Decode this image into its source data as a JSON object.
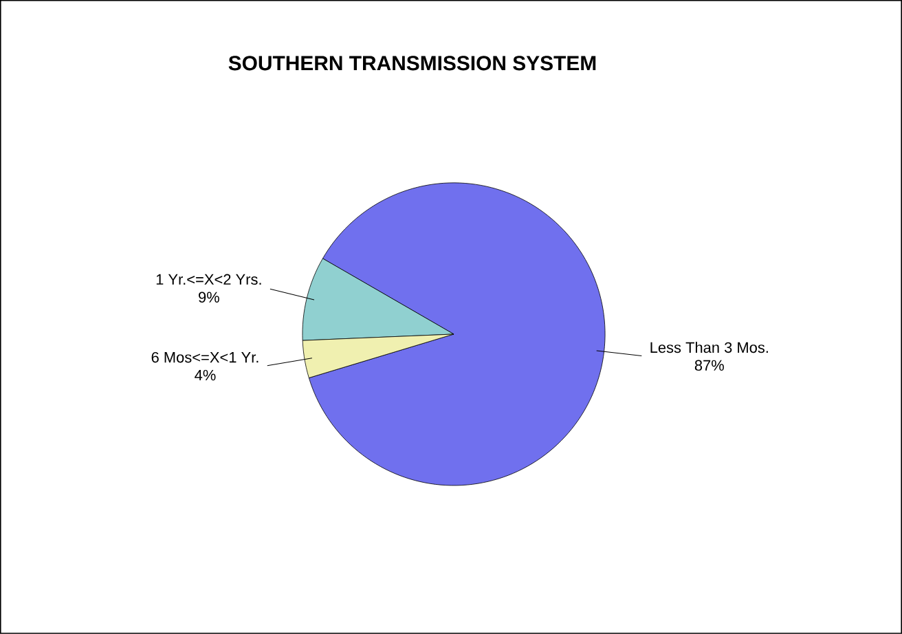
{
  "chart_data": {
    "type": "pie",
    "title": "SOUTHERN TRANSMISSION SYSTEM",
    "categories": [
      "Less Than 3 Mos.",
      "1 Yr.<=X<2 Yrs.",
      "6 Mos<=X<1 Yr."
    ],
    "values": [
      87,
      9,
      4
    ],
    "colors": [
      "#7070ee",
      "#90d0d0",
      "#f0f0b0"
    ],
    "value_labels": [
      "87%",
      "9%",
      "4%"
    ]
  }
}
